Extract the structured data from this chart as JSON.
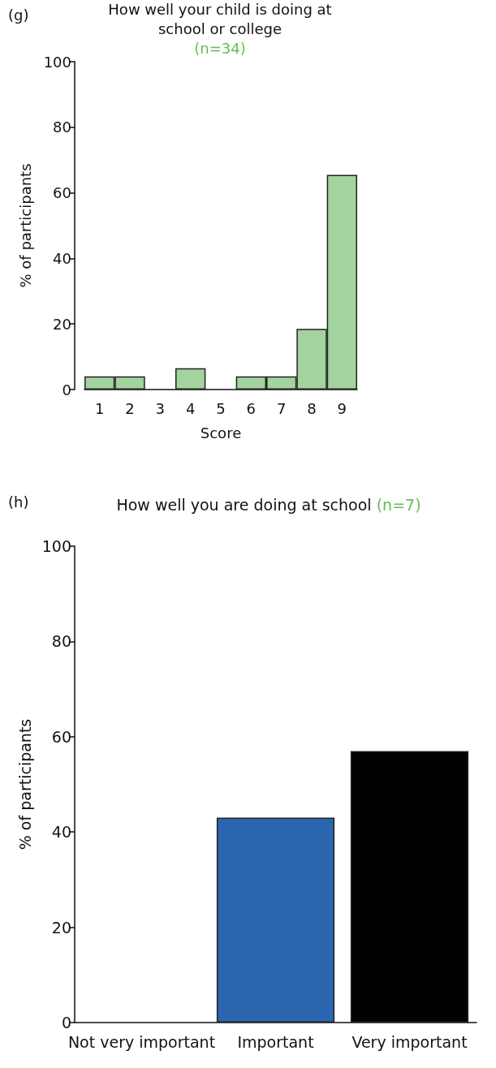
{
  "chart_data": [
    {
      "type": "bar",
      "title": "How well your child is doing at school or college",
      "subtitle": "(n=34)",
      "annotations": [
        "(g)"
      ],
      "xlabel": "Score",
      "ylabel": "% of participants",
      "categories": [
        "1",
        "2",
        "3",
        "4",
        "5",
        "6",
        "7",
        "8",
        "9"
      ],
      "values": [
        4,
        4,
        0,
        6.5,
        0,
        4,
        4,
        18.5,
        65.5
      ],
      "color": "#a3d49e",
      "ylim": [
        0,
        100
      ],
      "yticks": [
        0,
        20,
        40,
        60,
        80,
        100
      ],
      "grid": false
    },
    {
      "type": "bar",
      "title": "How well you are doing at school",
      "subtitle": "(n=7)",
      "annotations": [
        "(h)"
      ],
      "ylabel": "% of participants",
      "categories": [
        "Not very important",
        "Important",
        "Very important"
      ],
      "values": [
        0,
        43,
        57
      ],
      "colors": [
        null,
        "#2a66b0",
        "#000000"
      ],
      "ylim": [
        0,
        100
      ],
      "yticks": [
        0,
        20,
        40,
        60,
        80,
        100
      ],
      "grid": false
    }
  ]
}
